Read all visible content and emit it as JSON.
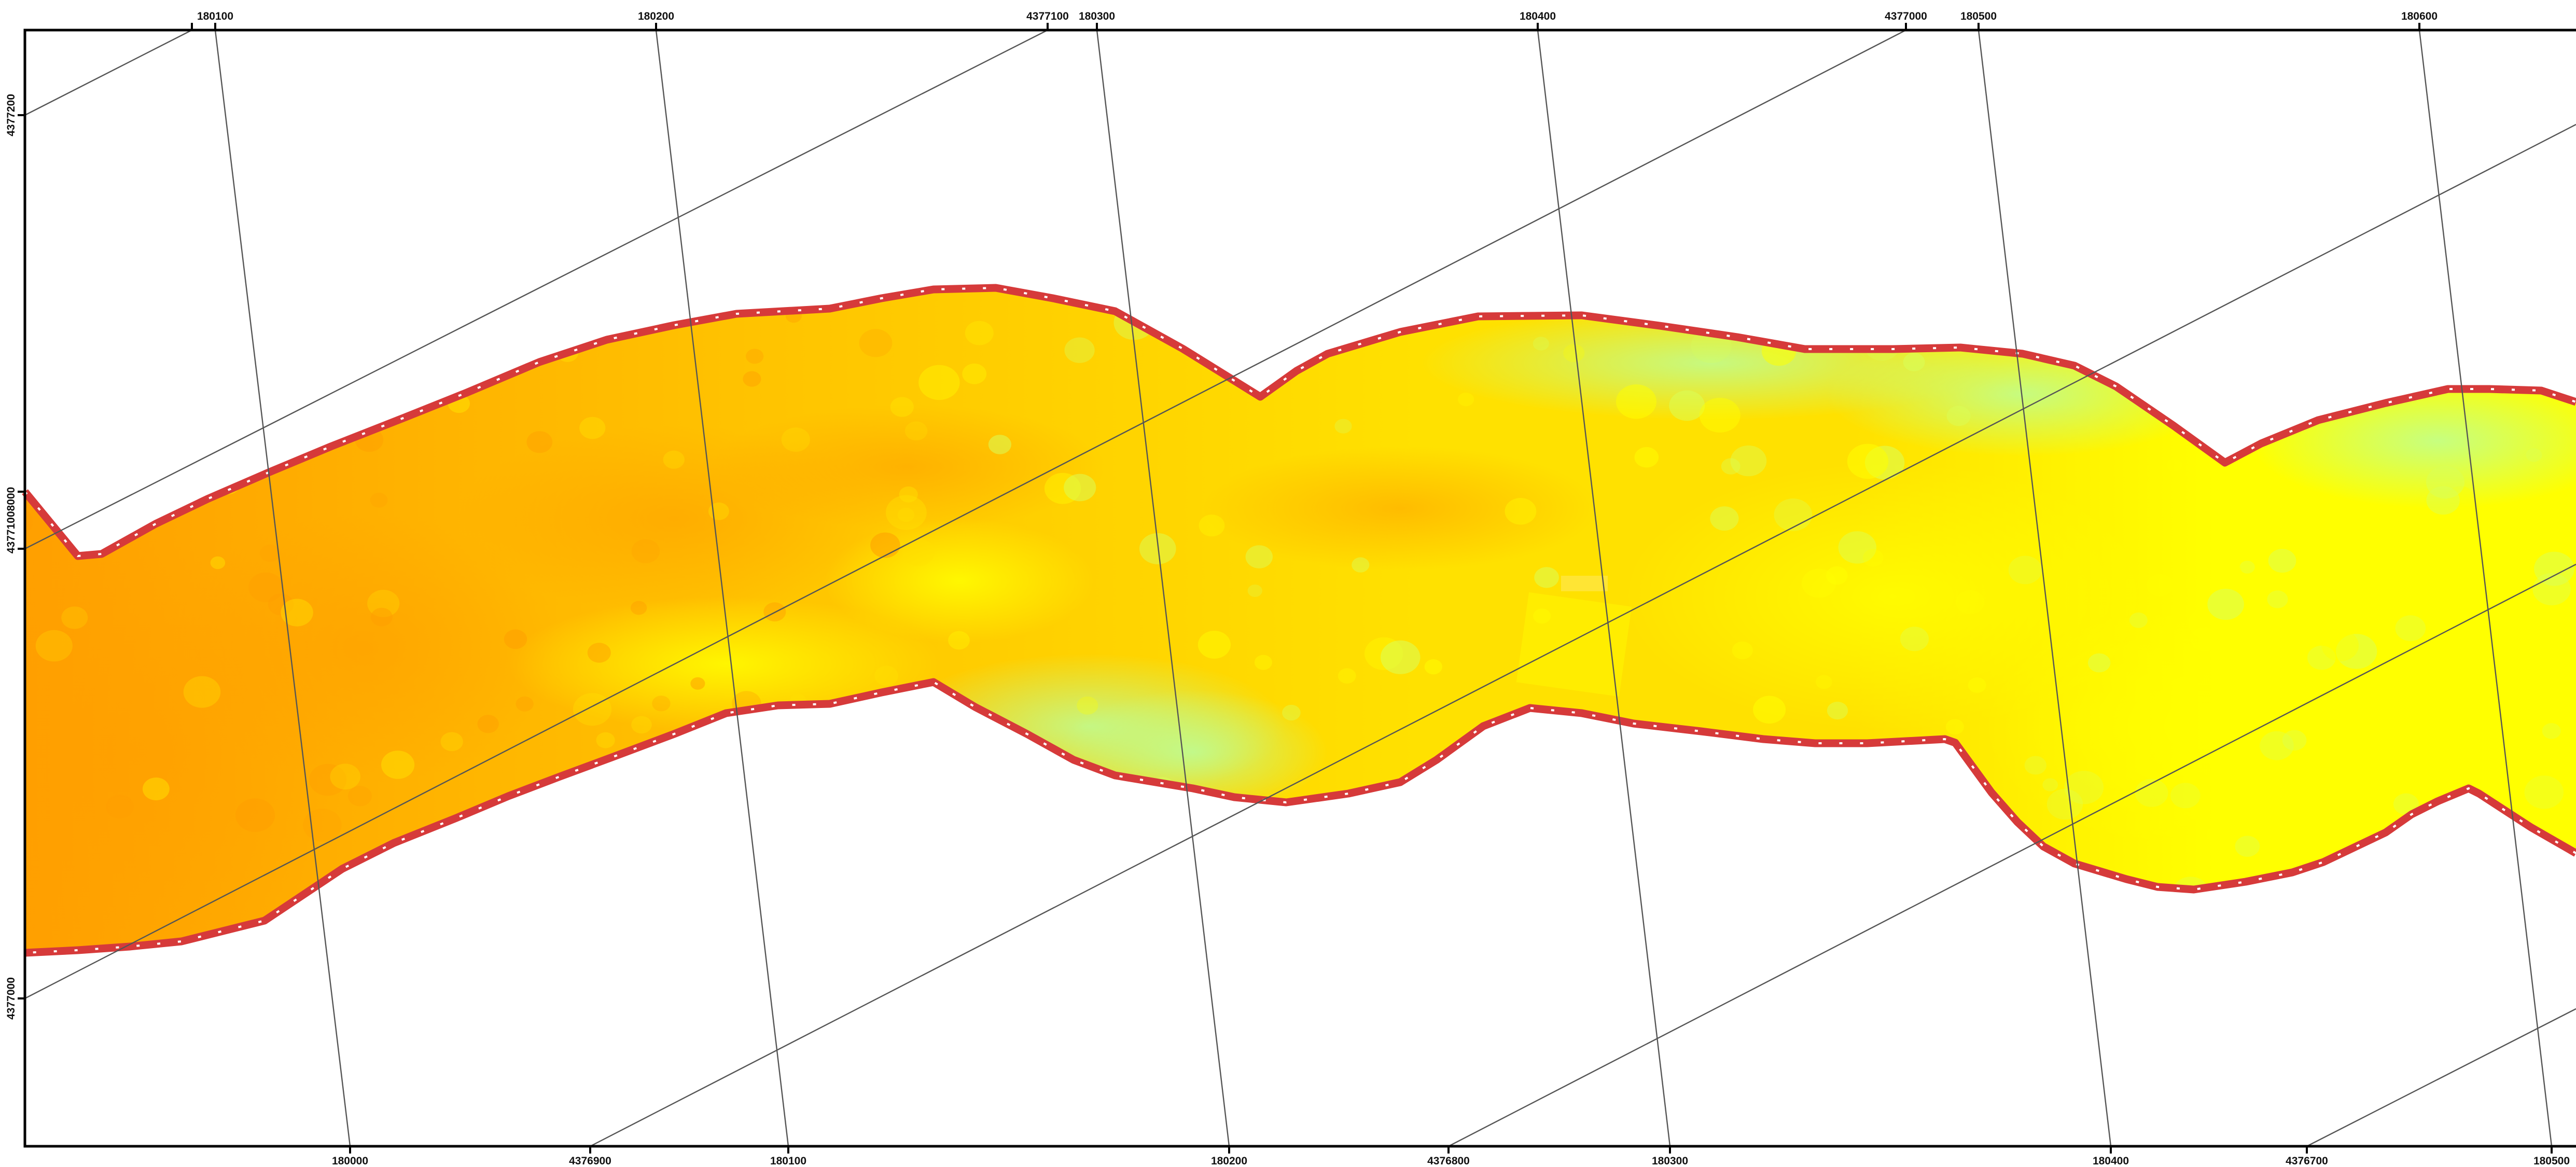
{
  "map": {
    "colors": {
      "frame": "#000000",
      "grid": "#555555",
      "boundary": "#d63a3a",
      "boundary_dash": "#ffffff",
      "ramp": [
        "#ff9e00",
        "#ffc400",
        "#ffe100",
        "#ffff00",
        "#d8ff5a",
        "#b8ffa0"
      ]
    },
    "top_labels": [
      "180100",
      "180200",
      "4377100",
      "180300",
      "180400",
      "4377000",
      "180500",
      "180600"
    ],
    "bottom_labels": [
      "180000",
      "4376900",
      "180100",
      "180200",
      "4376800",
      "180300",
      "180400",
      "4376700",
      "180500"
    ],
    "left_labels": [
      "4377200",
      "43771008000",
      "4377000"
    ]
  }
}
